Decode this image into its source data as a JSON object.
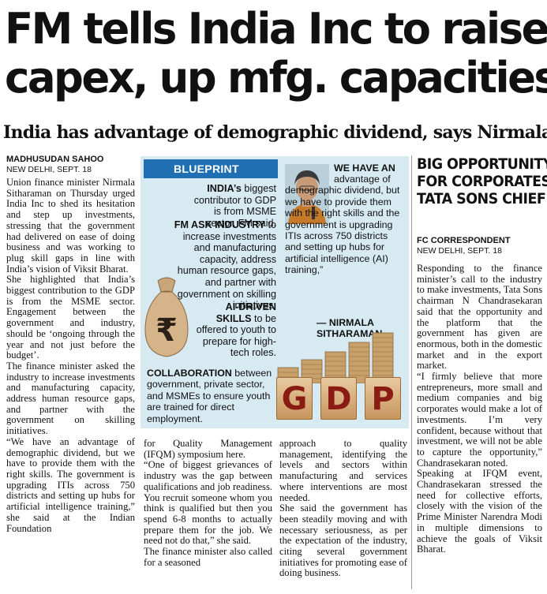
{
  "headline": {
    "line1": "FM tells India Inc to raise",
    "line2": "capex, up mfg. capacities"
  },
  "subhead": "India has advantage of demographic dividend, says Nirmala",
  "byline": {
    "author": "MADHUSUDAN SAHOO",
    "dateline": "NEW DELHI, SEPT. 18"
  },
  "column1": [
    "Union finance minister Nirmala Sitharaman on Thursday urged India Inc to shed its hesitation and step up investments, stressing that the government had delivered on ease of doing business and was working to plug skill gaps in line with India’s vision of Viksit Bharat.",
    "She highlighted that India’s biggest contribution to the GDP is from the MSME sector. Engagement between the government and industry, should be ‘ongoing through the year and not just before the budget’.",
    "The finance minister asked the industry to increase investments and manufacturing capacity, address human resource gaps, and partner with the government on skilling initiatives.",
    "“We have an advantage of demographic dividend, but we have to provide them with the right skills. The government is upgrading ITIs across 750 districts and setting up hubs for artificial intelligence training,” she said at the Indian Foundation"
  ],
  "column2": [
    "for Quality Management (IFQM) symposium here.",
    "“One of biggest grievances of industry was the gap between qualifications and job readiness. You recruit someone whom you think is qualified but then you spend 6-8 months to actually prepare them for the job. We need not do that,” she said.",
    "The finance minister also called for a seasoned"
  ],
  "column3": [
    "approach to quality management, identifying the levels and sectors within manufacturing and services where interventions are most needed.",
    "She said the government has been steadily moving and with necessary seriousness, as per the expectation of the industry, citing several government initiatives for promoting ease of doing business."
  ],
  "blueprint": {
    "tag": "BLUEPRINT",
    "item1_bold": "INDIA’s",
    "item1_rest": " biggest contributor to GDP is from MSME sector, FM said.",
    "item2_bold": "FM ASK INDUSTRY",
    "item2_rest": " to increase investments and manufacturing capacity, address human resource gaps, and partner with government on skilling initiatives.",
    "item3_bold": "AI-DRIVEN SKILLS",
    "item3_rest": " to be offered to youth to prepare for high-tech roles.",
    "quote_bold": "WE HAVE AN",
    "quote_rest": " advantage of demographic dividend, but we have to provide them with the right skills and the government is upgrading ITIs across 750 districts and setting up hubs for artificial intelligence (AI) training,”",
    "attribution_line1": "— NIRMALA",
    "attribution_line2": "SITHARAMAN.",
    "collab_bold": "COLLABORATION",
    "collab_rest": " between government, private sector, and MSMEs to ensure youth are trained for direct employment.",
    "gdp": [
      "G",
      "D",
      "P"
    ],
    "rupee_symbol": "₹"
  },
  "sidebar": {
    "head_line1": "BIG OPPORTUNITY",
    "head_line2": "FOR CORPORATES:",
    "head_line3": "TATA SONS CHIEF",
    "author": "FC CORRESPONDENT",
    "dateline": "NEW DELHI, SEPT. 18",
    "paragraphs": [
      "Responding to the finance minister’s call to the industry to make investments, Tata Sons chairman N Chandrasekaran said that the opportunity and the platform that the government has given are enormous, both in the domestic market and in the export market.",
      "“I firmly believe that more entrepreneurs, more small and medium companies and big corporates would make a lot of investments. I’m very confident, because without that investment, we will not be able to capture the opportunity,” Chandrasekaran noted.",
      "Speaking at IFQM event, Chandrasekaran stressed the need for collective efforts, closely with the vision of the Prime Minister Narendra Modi in multiple dimensions to achieve the goals of Viksit Bharat."
    ]
  },
  "colors": {
    "blueprint_bg": "#d7eaf2",
    "blueprint_tag": "#1f6fb2",
    "gdp_letter": "#8a1c14"
  }
}
